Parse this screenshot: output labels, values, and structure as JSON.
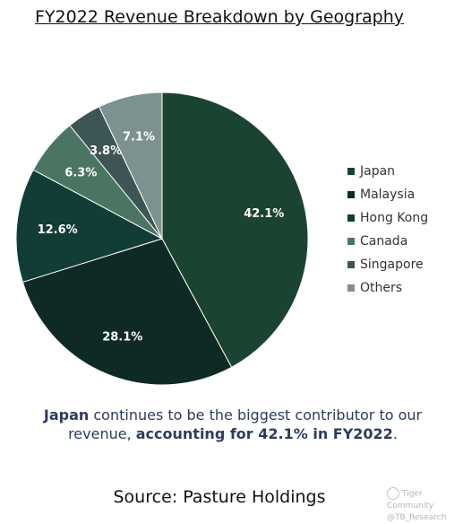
{
  "title": "FY2022 Revenue Breakdown by Geography",
  "chart_data": {
    "type": "pie",
    "title": "FY2022 Revenue Breakdown by Geography",
    "slices": [
      {
        "label": "Japan",
        "value": 42.1,
        "display": "42.1%",
        "color": "#1b4332"
      },
      {
        "label": "Malaysia",
        "value": 28.1,
        "display": "28.1%",
        "color": "#0f2a24"
      },
      {
        "label": "Hong Kong",
        "value": 12.6,
        "display": "12.6%",
        "color": "#123c36"
      },
      {
        "label": "Canada",
        "value": 6.3,
        "display": "6.3%",
        "color": "#4a7563"
      },
      {
        "label": "Singapore",
        "value": 3.8,
        "display": "3.8%",
        "color": "#3e5555"
      },
      {
        "label": "Others",
        "value": 7.1,
        "display": "7.1%",
        "color": "#7c9290"
      }
    ],
    "legend_position": "right"
  },
  "caption": {
    "part1": "Japan",
    "part2": " continues to be the biggest contributor to our revenue, ",
    "part3": "accounting for 42.1% in FY2022",
    "part4": "."
  },
  "source": "Source: Pasture Holdings",
  "watermark": {
    "line1": "Tiger Community",
    "line2": "@TB_Research"
  }
}
